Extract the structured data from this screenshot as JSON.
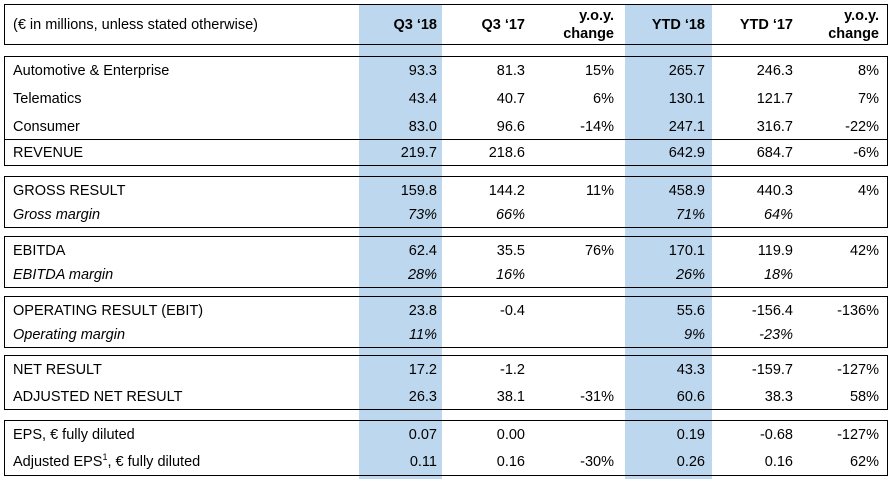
{
  "header": {
    "label": "(€ in millions, unless stated otherwise)",
    "columns": [
      {
        "lines": [
          "Q3 ‘18"
        ]
      },
      {
        "lines": [
          "Q3 ‘17"
        ]
      },
      {
        "lines": [
          "y.o.y.",
          "change"
        ]
      },
      {
        "lines": [
          "YTD ‘18"
        ]
      },
      {
        "lines": [
          "YTD ‘17"
        ]
      },
      {
        "lines": [
          "y.o.y.",
          "change"
        ]
      }
    ]
  },
  "highlight_color": "#bdd7ee",
  "rows": [
    {
      "label": "Automotive & Enterprise",
      "italic": false,
      "values": [
        "93.3",
        "81.3",
        "15%",
        "265.7",
        "246.3",
        "8%"
      ]
    },
    {
      "label": "Telematics",
      "italic": false,
      "values": [
        "43.4",
        "40.7",
        "6%",
        "130.1",
        "121.7",
        "7%"
      ]
    },
    {
      "label": "Consumer",
      "italic": false,
      "values": [
        "83.0",
        "96.6",
        "-14%",
        "247.1",
        "316.7",
        "-22%"
      ]
    },
    {
      "label": "REVENUE",
      "italic": false,
      "values": [
        "219.7",
        "218.6",
        "",
        "642.9",
        "684.7",
        "-6%"
      ]
    },
    {
      "label": "GROSS RESULT",
      "italic": false,
      "values": [
        "159.8",
        "144.2",
        "11%",
        "458.9",
        "440.3",
        "4%"
      ]
    },
    {
      "label": "Gross margin",
      "italic": true,
      "values": [
        "73%",
        "66%",
        "",
        "71%",
        "64%",
        ""
      ]
    },
    {
      "label": "EBITDA",
      "italic": false,
      "values": [
        "62.4",
        "35.5",
        "76%",
        "170.1",
        "119.9",
        "42%"
      ]
    },
    {
      "label": "EBITDA margin",
      "italic": true,
      "values": [
        "28%",
        "16%",
        "",
        "26%",
        "18%",
        ""
      ]
    },
    {
      "label": "OPERATING RESULT (EBIT)",
      "italic": false,
      "values": [
        "23.8",
        "-0.4",
        "",
        "55.6",
        "-156.4",
        "-136%"
      ]
    },
    {
      "label": "Operating margin",
      "italic": true,
      "values": [
        "11%",
        "",
        "",
        "9%",
        "-23%",
        ""
      ]
    },
    {
      "label": "NET RESULT",
      "italic": false,
      "values": [
        "17.2",
        "-1.2",
        "",
        "43.3",
        "-159.7",
        "-127%"
      ]
    },
    {
      "label": "ADJUSTED NET RESULT",
      "italic": false,
      "values": [
        "26.3",
        "38.1",
        "-31%",
        "60.6",
        "38.3",
        "58%"
      ]
    },
    {
      "label": "EPS, € fully diluted",
      "italic": false,
      "values": [
        "0.07",
        "0.00",
        "",
        "0.19",
        "-0.68",
        "-127%"
      ]
    },
    {
      "label_before_sup": "Adjusted EPS",
      "label_sup": "1",
      "label_after_sup": ", € fully diluted",
      "italic": false,
      "values": [
        "0.11",
        "0.16",
        "-30%",
        "0.26",
        "0.16",
        "62%"
      ]
    }
  ]
}
